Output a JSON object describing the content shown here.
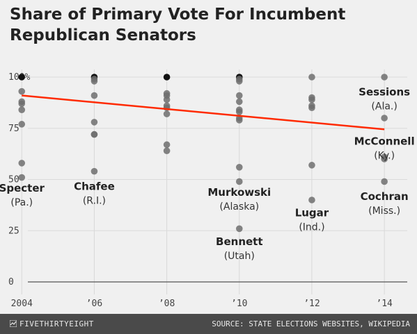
{
  "title": "Share of Primary Vote For Incumbent Republican Senators",
  "footer": {
    "brand": "FIVETHIRTYEIGHT",
    "brand_icon": "fivethirtyeight-logo-icon",
    "source": "SOURCE: STATE ELECTIONS WEBSITES, WIKIPEDIA"
  },
  "colors": {
    "dot": "#6f6f6f",
    "dot_full": "#111111",
    "trend": "#ff2a00",
    "background": "#f0f0f0",
    "footer": "#4a4a4a"
  },
  "chart_data": {
    "type": "scatter",
    "title": "Share of Primary Vote For Incumbent Republican Senators",
    "xlabel": "",
    "ylabel": "",
    "x_ticks": [
      {
        "value": 2004,
        "label": "2004"
      },
      {
        "value": 2006,
        "label": "’06"
      },
      {
        "value": 2008,
        "label": "’08"
      },
      {
        "value": 2010,
        "label": "’10"
      },
      {
        "value": 2012,
        "label": "’12"
      },
      {
        "value": 2014,
        "label": "’14"
      }
    ],
    "y_ticks": [
      {
        "value": 100,
        "label": "100%"
      },
      {
        "value": 75,
        "label": "75"
      },
      {
        "value": 50,
        "label": "50"
      },
      {
        "value": 25,
        "label": "25"
      },
      {
        "value": 0,
        "label": "0"
      }
    ],
    "xlim": [
      2003.4,
      2014.9
    ],
    "ylim": [
      0,
      100
    ],
    "grid": "vertical",
    "points": [
      {
        "x": 2004,
        "y": 100
      },
      {
        "x": 2004,
        "y": 93
      },
      {
        "x": 2004,
        "y": 88
      },
      {
        "x": 2004,
        "y": 87
      },
      {
        "x": 2004,
        "y": 84
      },
      {
        "x": 2004,
        "y": 77
      },
      {
        "x": 2004,
        "y": 58
      },
      {
        "x": 2004,
        "y": 51
      },
      {
        "x": 2006,
        "y": 100
      },
      {
        "x": 2006,
        "y": 99
      },
      {
        "x": 2006,
        "y": 98
      },
      {
        "x": 2006,
        "y": 91
      },
      {
        "x": 2006,
        "y": 78
      },
      {
        "x": 2006,
        "y": 72
      },
      {
        "x": 2006,
        "y": 72
      },
      {
        "x": 2006,
        "y": 54
      },
      {
        "x": 2008,
        "y": 100
      },
      {
        "x": 2008,
        "y": 92
      },
      {
        "x": 2008,
        "y": 91
      },
      {
        "x": 2008,
        "y": 89
      },
      {
        "x": 2008,
        "y": 86
      },
      {
        "x": 2008,
        "y": 85
      },
      {
        "x": 2008,
        "y": 82
      },
      {
        "x": 2008,
        "y": 67
      },
      {
        "x": 2008,
        "y": 64
      },
      {
        "x": 2010,
        "y": 100
      },
      {
        "x": 2010,
        "y": 99
      },
      {
        "x": 2010,
        "y": 98
      },
      {
        "x": 2010,
        "y": 91
      },
      {
        "x": 2010,
        "y": 88
      },
      {
        "x": 2010,
        "y": 84
      },
      {
        "x": 2010,
        "y": 83
      },
      {
        "x": 2010,
        "y": 80
      },
      {
        "x": 2010,
        "y": 79
      },
      {
        "x": 2010,
        "y": 56
      },
      {
        "x": 2010,
        "y": 49
      },
      {
        "x": 2010,
        "y": 26
      },
      {
        "x": 2012,
        "y": 100
      },
      {
        "x": 2012,
        "y": 90
      },
      {
        "x": 2012,
        "y": 89
      },
      {
        "x": 2012,
        "y": 86
      },
      {
        "x": 2012,
        "y": 85
      },
      {
        "x": 2012,
        "y": 57
      },
      {
        "x": 2012,
        "y": 40
      },
      {
        "x": 2014,
        "y": 100
      },
      {
        "x": 2014,
        "y": 80
      },
      {
        "x": 2014,
        "y": 61
      },
      {
        "x": 2014,
        "y": 60
      },
      {
        "x": 2014,
        "y": 49
      }
    ],
    "trend": {
      "x": [
        2004,
        2014
      ],
      "y": [
        91,
        74.5
      ]
    },
    "annotations": [
      {
        "name": "Specter",
        "state": "(Pa.)",
        "x": 2004,
        "y": 44
      },
      {
        "name": "Chafee",
        "state": "(R.I.)",
        "x": 2006,
        "y": 45
      },
      {
        "name": "Murkowski",
        "state": "(Alaska)",
        "x": 2010,
        "y": 42
      },
      {
        "name": "Bennett",
        "state": "(Utah)",
        "x": 2010,
        "y": 18
      },
      {
        "name": "Lugar",
        "state": "(Ind.)",
        "x": 2012,
        "y": 32
      },
      {
        "name": "Sessions",
        "state": "(Ala.)",
        "x": 2014,
        "y": 91
      },
      {
        "name": "McConnell",
        "state": "(Ky.)",
        "x": 2014,
        "y": 67
      },
      {
        "name": "Cochran",
        "state": "(Miss.)",
        "x": 2014,
        "y": 40
      }
    ]
  }
}
